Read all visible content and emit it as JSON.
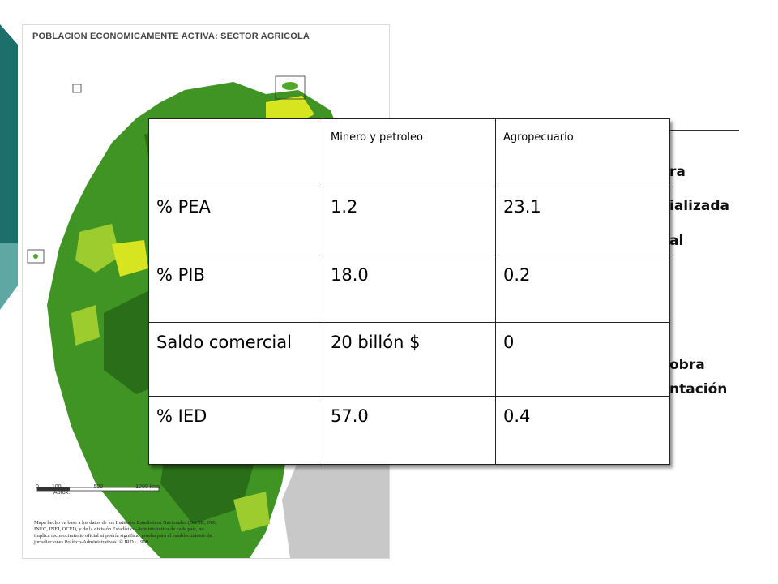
{
  "map": {
    "title": "POBLACION ECONOMICAMENTE ACTIVA: SECTOR AGRICOLA",
    "scale_labels": [
      "0",
      "100",
      "500",
      "1000 kms"
    ],
    "scale_note": "Aprox.",
    "credit": "Mapa hecho en base a los datos de los Institutos Estadísticos Nacionales (DANE, INE, INEC, INEI, OCEI), y de la división Estadístico-Administrativa de cada país, no implica reconocimiento oficial ni podría significar prueba para el establecimiento de jurisdicciones Político-Administrativas. © IRD · 1999"
  },
  "background_text": {
    "line1": "ra",
    "line2": "ializada",
    "line3": "al",
    "line4": "obra",
    "line5": "ntación"
  },
  "table": {
    "headers": [
      "",
      "Minero y petroleo",
      "Agropecuario"
    ],
    "rows": [
      {
        "label": "% PEA",
        "mining": "1.2",
        "agro": "23.1"
      },
      {
        "label": "% PIB",
        "mining": "18.0",
        "agro": "0.2"
      },
      {
        "label": "Saldo comercial",
        "mining": "20 billón $",
        "agro": "0"
      },
      {
        "label": "% IED",
        "mining": "57.0",
        "agro": "0.4"
      }
    ]
  },
  "colors": {
    "teal_dark": "#1c6f6b",
    "teal_light": "#5fa7a3",
    "map_green_dark": "#2f7d1e",
    "map_green": "#4fa82a",
    "map_yellow": "#d6e51f",
    "map_grey": "#c8c8c8"
  }
}
